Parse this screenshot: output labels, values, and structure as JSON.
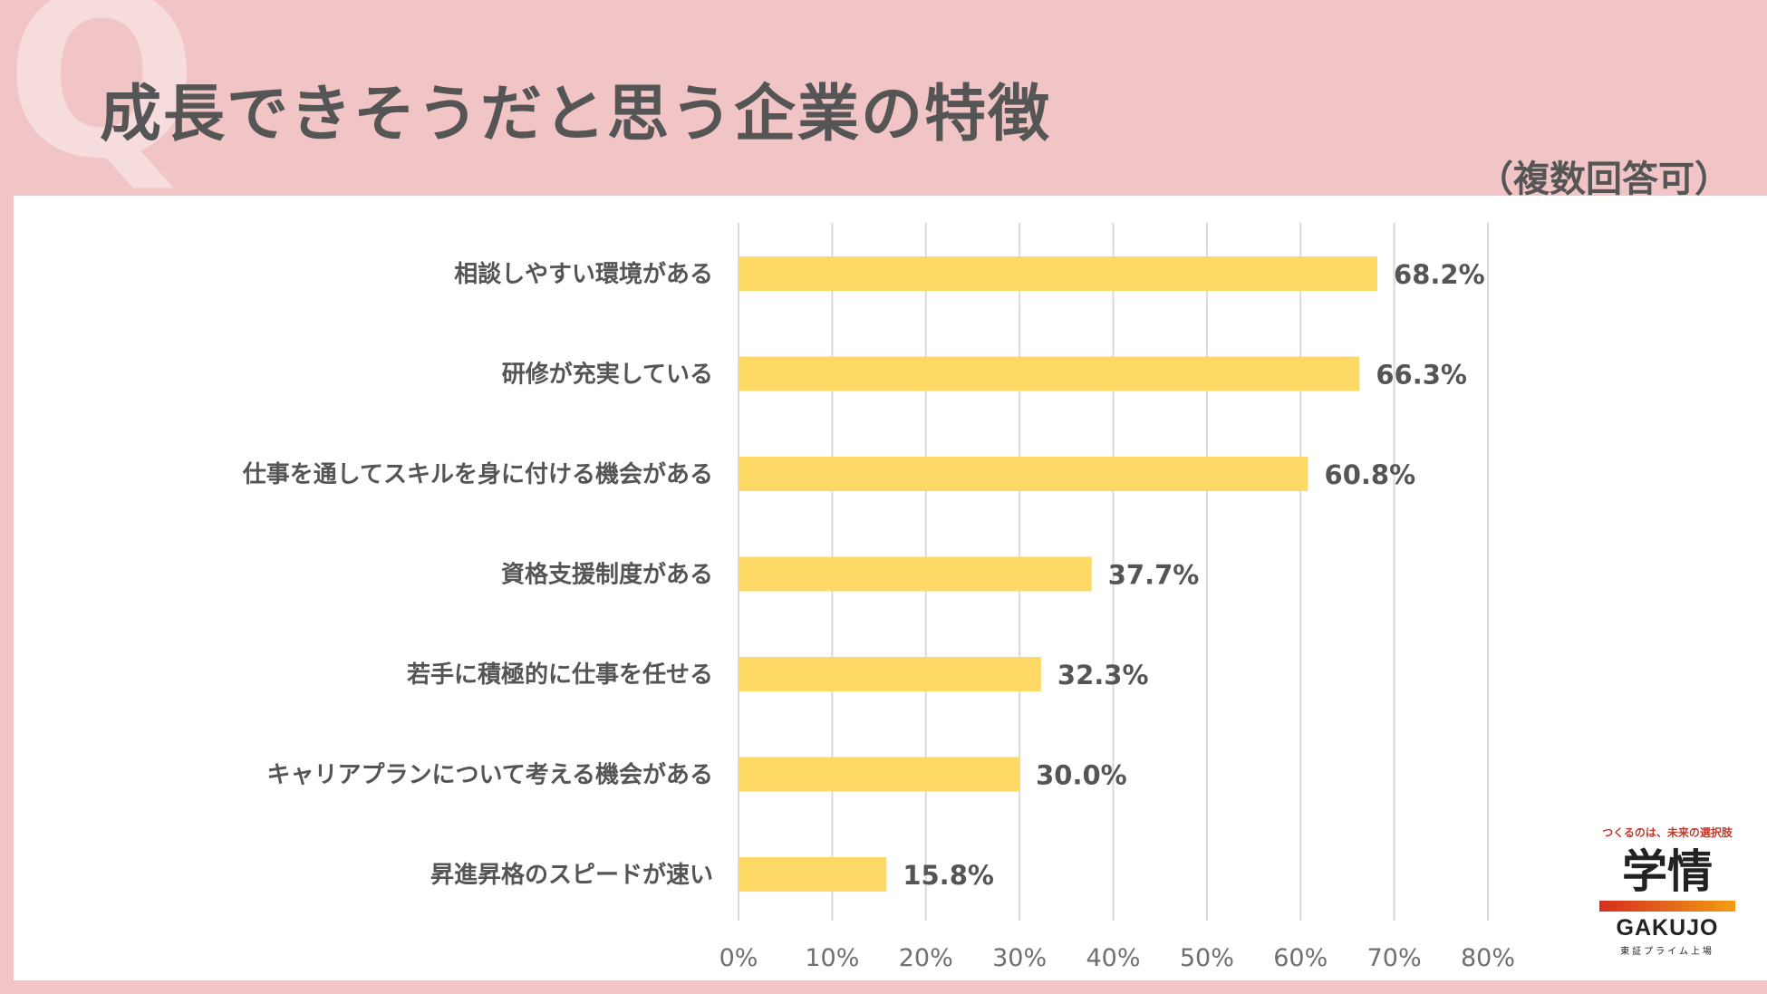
{
  "header": {
    "q_mark": "Q",
    "title": "成長できそうだと思う企業の特徴",
    "subtitle": "（複数回答可）"
  },
  "colors": {
    "bar": "#ffd966",
    "grid": "#d9d9d9",
    "background": "#f1c4c5"
  },
  "chart_data": {
    "type": "bar",
    "orientation": "horizontal",
    "categories": [
      "相談しやすい環境がある",
      "研修が充実している",
      "仕事を通してスキルを身に付ける機会がある",
      "資格支援制度がある",
      "若手に積極的に仕事を任せる",
      "キャリアプランについて考える機会がある",
      "昇進昇格のスピードが速い"
    ],
    "values": [
      68.2,
      66.3,
      60.8,
      37.7,
      32.3,
      30.0,
      15.8
    ],
    "value_labels": [
      "68.2%",
      "66.3%",
      "60.8%",
      "37.7%",
      "32.3%",
      "30.0%",
      "15.8%"
    ],
    "xticks": [
      "0%",
      "10%",
      "20%",
      "30%",
      "40%",
      "50%",
      "60%",
      "70%",
      "80%"
    ],
    "xlim": [
      0,
      80
    ],
    "grid": true,
    "title": "成長できそうだと思う企業の特徴"
  },
  "logo": {
    "tagline": "つくるのは、未来の選択肢",
    "kanji": "学情",
    "english": "GAKUJO",
    "market": "東証プライム上場"
  }
}
